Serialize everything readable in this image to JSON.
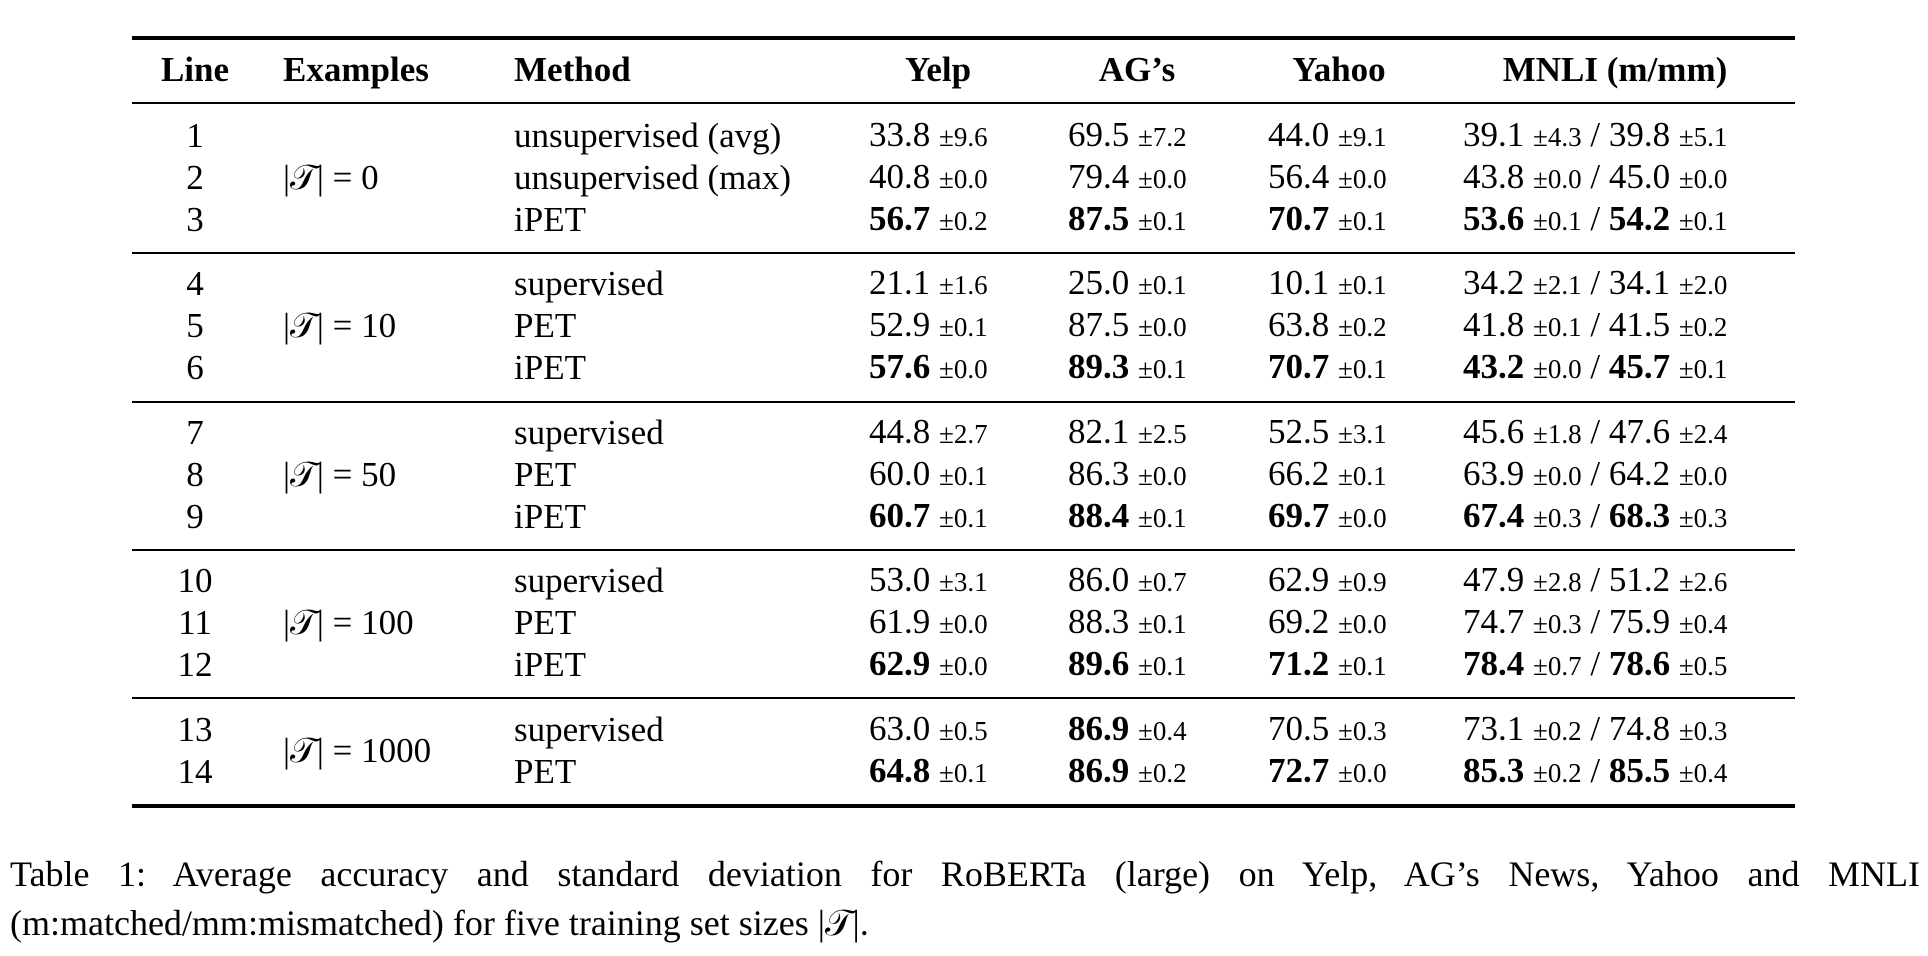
{
  "table": {
    "header": [
      "Line",
      "Examples",
      "Method",
      "Yelp",
      "AG’s",
      "Yahoo",
      "MNLI (m/mm)"
    ],
    "separator": "/",
    "groups": [
      {
        "examples": "|𝒯| = 0",
        "rows": [
          {
            "line": "1",
            "method": "unsupervised (avg)",
            "cells": [
              [
                "33.8",
                "±9.6",
                false
              ],
              [
                "69.5",
                "±7.2",
                false
              ],
              [
                "44.0",
                "±9.1",
                false
              ],
              [
                "39.1",
                "±4.3",
                false
              ],
              [
                "39.8",
                "±5.1",
                false
              ]
            ]
          },
          {
            "line": "2",
            "method": "unsupervised (max)",
            "cells": [
              [
                "40.8",
                "±0.0",
                false
              ],
              [
                "79.4",
                "±0.0",
                false
              ],
              [
                "56.4",
                "±0.0",
                false
              ],
              [
                "43.8",
                "±0.0",
                false
              ],
              [
                "45.0",
                "±0.0",
                false
              ]
            ]
          },
          {
            "line": "3",
            "method": "iPET",
            "cells": [
              [
                "56.7",
                "±0.2",
                true
              ],
              [
                "87.5",
                "±0.1",
                true
              ],
              [
                "70.7",
                "±0.1",
                true
              ],
              [
                "53.6",
                "±0.1",
                true
              ],
              [
                "54.2",
                "±0.1",
                true
              ]
            ]
          }
        ]
      },
      {
        "examples": "|𝒯| = 10",
        "rows": [
          {
            "line": "4",
            "method": "supervised",
            "cells": [
              [
                "21.1",
                "±1.6",
                false
              ],
              [
                "25.0",
                "±0.1",
                false
              ],
              [
                "10.1",
                "±0.1",
                false
              ],
              [
                "34.2",
                "±2.1",
                false
              ],
              [
                "34.1",
                "±2.0",
                false
              ]
            ]
          },
          {
            "line": "5",
            "method": "PET",
            "cells": [
              [
                "52.9",
                "±0.1",
                false
              ],
              [
                "87.5",
                "±0.0",
                false
              ],
              [
                "63.8",
                "±0.2",
                false
              ],
              [
                "41.8",
                "±0.1",
                false
              ],
              [
                "41.5",
                "±0.2",
                false
              ]
            ]
          },
          {
            "line": "6",
            "method": "iPET",
            "cells": [
              [
                "57.6",
                "±0.0",
                true
              ],
              [
                "89.3",
                "±0.1",
                true
              ],
              [
                "70.7",
                "±0.1",
                true
              ],
              [
                "43.2",
                "±0.0",
                true
              ],
              [
                "45.7",
                "±0.1",
                true
              ]
            ]
          }
        ]
      },
      {
        "examples": "|𝒯| = 50",
        "rows": [
          {
            "line": "7",
            "method": "supervised",
            "cells": [
              [
                "44.8",
                "±2.7",
                false
              ],
              [
                "82.1",
                "±2.5",
                false
              ],
              [
                "52.5",
                "±3.1",
                false
              ],
              [
                "45.6",
                "±1.8",
                false
              ],
              [
                "47.6",
                "±2.4",
                false
              ]
            ]
          },
          {
            "line": "8",
            "method": "PET",
            "cells": [
              [
                "60.0",
                "±0.1",
                false
              ],
              [
                "86.3",
                "±0.0",
                false
              ],
              [
                "66.2",
                "±0.1",
                false
              ],
              [
                "63.9",
                "±0.0",
                false
              ],
              [
                "64.2",
                "±0.0",
                false
              ]
            ]
          },
          {
            "line": "9",
            "method": "iPET",
            "cells": [
              [
                "60.7",
                "±0.1",
                true
              ],
              [
                "88.4",
                "±0.1",
                true
              ],
              [
                "69.7",
                "±0.0",
                true
              ],
              [
                "67.4",
                "±0.3",
                true
              ],
              [
                "68.3",
                "±0.3",
                true
              ]
            ]
          }
        ]
      },
      {
        "examples": "|𝒯| = 100",
        "rows": [
          {
            "line": "10",
            "method": "supervised",
            "cells": [
              [
                "53.0",
                "±3.1",
                false
              ],
              [
                "86.0",
                "±0.7",
                false
              ],
              [
                "62.9",
                "±0.9",
                false
              ],
              [
                "47.9",
                "±2.8",
                false
              ],
              [
                "51.2",
                "±2.6",
                false
              ]
            ]
          },
          {
            "line": "11",
            "method": "PET",
            "cells": [
              [
                "61.9",
                "±0.0",
                false
              ],
              [
                "88.3",
                "±0.1",
                false
              ],
              [
                "69.2",
                "±0.0",
                false
              ],
              [
                "74.7",
                "±0.3",
                false
              ],
              [
                "75.9",
                "±0.4",
                false
              ]
            ]
          },
          {
            "line": "12",
            "method": "iPET",
            "cells": [
              [
                "62.9",
                "±0.0",
                true
              ],
              [
                "89.6",
                "±0.1",
                true
              ],
              [
                "71.2",
                "±0.1",
                true
              ],
              [
                "78.4",
                "±0.7",
                true
              ],
              [
                "78.6",
                "±0.5",
                true
              ]
            ]
          }
        ]
      },
      {
        "examples": "|𝒯| = 1000",
        "rows": [
          {
            "line": "13",
            "method": "supervised",
            "cells": [
              [
                "63.0",
                "±0.5",
                false
              ],
              [
                "86.9",
                "±0.4",
                true
              ],
              [
                "70.5",
                "±0.3",
                false
              ],
              [
                "73.1",
                "±0.2",
                false
              ],
              [
                "74.8",
                "±0.3",
                false
              ]
            ]
          },
          {
            "line": "14",
            "method": "PET",
            "cells": [
              [
                "64.8",
                "±0.1",
                true
              ],
              [
                "86.9",
                "±0.2",
                true
              ],
              [
                "72.7",
                "±0.0",
                true
              ],
              [
                "85.3",
                "±0.2",
                true
              ],
              [
                "85.5",
                "±0.4",
                true
              ]
            ]
          }
        ]
      }
    ]
  },
  "caption": {
    "text": "Table 1: Average accuracy and standard deviation for RoBERTa (large) on Yelp, AG’s News, Yahoo and MNLI (m:matched/mm:mismatched) for five training set sizes |𝒯|."
  }
}
